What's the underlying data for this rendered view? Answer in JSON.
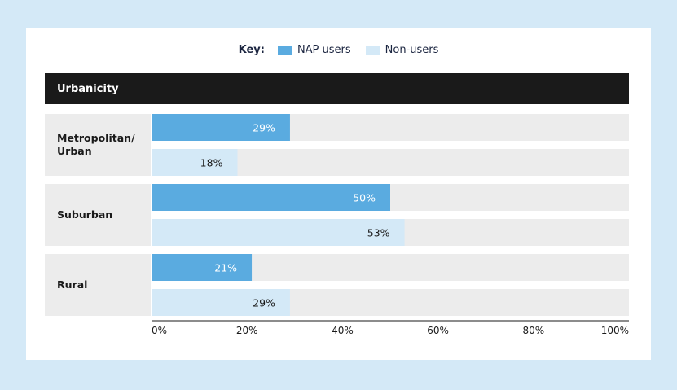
{
  "legend": {
    "key_label": "Key:",
    "items": [
      {
        "label": "NAP users",
        "color": "#5aabe0"
      },
      {
        "label": "Non-users",
        "color": "#d4e9f7"
      }
    ]
  },
  "header": {
    "title": "Urbanicity"
  },
  "colors": {
    "nap": "#5aabe0",
    "non": "#d4e9f7",
    "track": "#ececec",
    "nap_text": "#ffffff",
    "non_text": "#1a1a1a"
  },
  "chart_data": {
    "type": "bar",
    "orientation": "horizontal",
    "categories": [
      "Metropolitan/\nUrban",
      "Suburban",
      "Rural"
    ],
    "series": [
      {
        "name": "NAP users",
        "values": [
          29,
          50,
          21
        ],
        "labels": [
          "29%",
          "50%",
          "21%"
        ]
      },
      {
        "name": "Non-users",
        "values": [
          18,
          53,
          29
        ],
        "labels": [
          "18%",
          "53%",
          "29%"
        ]
      }
    ],
    "xlim": [
      0,
      100
    ],
    "xticks": [
      0,
      20,
      40,
      60,
      80,
      100
    ],
    "xtick_labels": [
      "0%",
      "20%",
      "40%",
      "60%",
      "80%",
      "100%"
    ],
    "title": "",
    "xlabel": "",
    "ylabel": "Urbanicity",
    "legend_position": "top-center",
    "grid": false
  }
}
